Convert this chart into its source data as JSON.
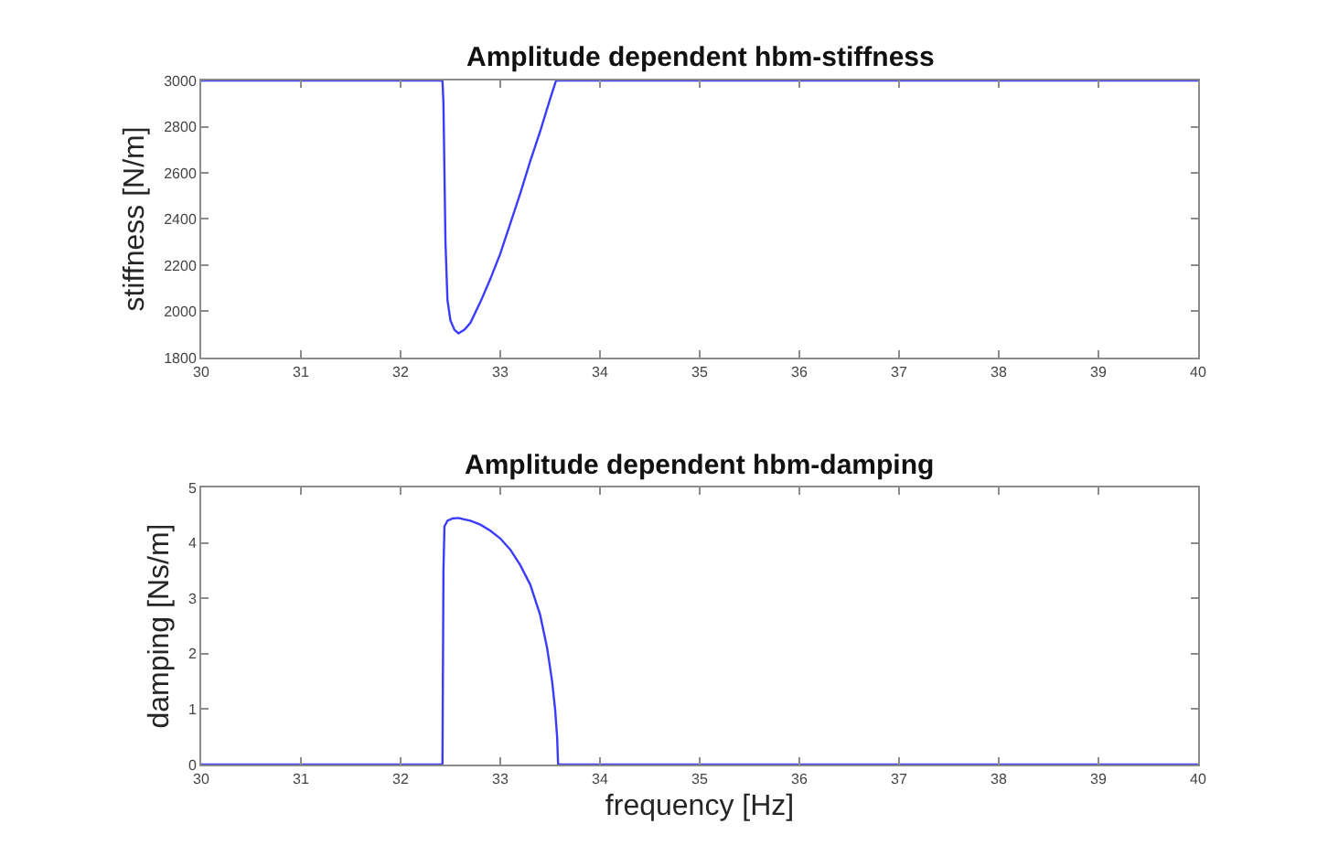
{
  "chart_data": [
    {
      "type": "line",
      "title": "Amplitude dependent hbm-stiffness",
      "ylabel": "stiffness [N/m]",
      "xlim": [
        30,
        40
      ],
      "xticks": [
        30,
        31,
        32,
        33,
        34,
        35,
        36,
        37,
        38,
        39,
        40
      ],
      "ylim": [
        1800,
        3000
      ],
      "yticks": [
        1800,
        2000,
        2200,
        2400,
        2600,
        2800,
        3000
      ],
      "grid": false,
      "series": [
        {
          "color": "#3c3cff",
          "x": [
            30,
            32.42,
            32.43,
            32.44,
            32.45,
            32.47,
            32.5,
            32.54,
            32.58,
            32.64,
            32.7,
            32.8,
            32.9,
            33.0,
            33.1,
            33.2,
            33.3,
            33.4,
            33.5,
            33.56,
            40
          ],
          "values": [
            3000,
            3000,
            2900,
            2600,
            2300,
            2050,
            1960,
            1920,
            1905,
            1920,
            1950,
            2040,
            2140,
            2250,
            2380,
            2510,
            2650,
            2780,
            2920,
            3000,
            3000
          ]
        }
      ]
    },
    {
      "type": "line",
      "title": "Amplitude dependent hbm-damping",
      "ylabel": "damping [Ns/m]",
      "xlabel": "frequency [Hz]",
      "xlim": [
        30,
        40
      ],
      "xticks": [
        30,
        31,
        32,
        33,
        34,
        35,
        36,
        37,
        38,
        39,
        40
      ],
      "ylim": [
        0,
        5
      ],
      "yticks": [
        0,
        1,
        2,
        3,
        4,
        5
      ],
      "grid": false,
      "series": [
        {
          "color": "#3c3cff",
          "x": [
            30,
            32.42,
            32.43,
            32.44,
            32.47,
            32.52,
            32.58,
            32.7,
            32.8,
            32.9,
            33.0,
            33.1,
            33.2,
            33.3,
            33.4,
            33.47,
            33.52,
            33.55,
            33.57,
            33.58,
            40
          ],
          "values": [
            0,
            0,
            3.5,
            4.3,
            4.4,
            4.44,
            4.45,
            4.4,
            4.33,
            4.22,
            4.08,
            3.88,
            3.6,
            3.25,
            2.7,
            2.1,
            1.5,
            1.0,
            0.5,
            0,
            0
          ]
        }
      ]
    }
  ]
}
